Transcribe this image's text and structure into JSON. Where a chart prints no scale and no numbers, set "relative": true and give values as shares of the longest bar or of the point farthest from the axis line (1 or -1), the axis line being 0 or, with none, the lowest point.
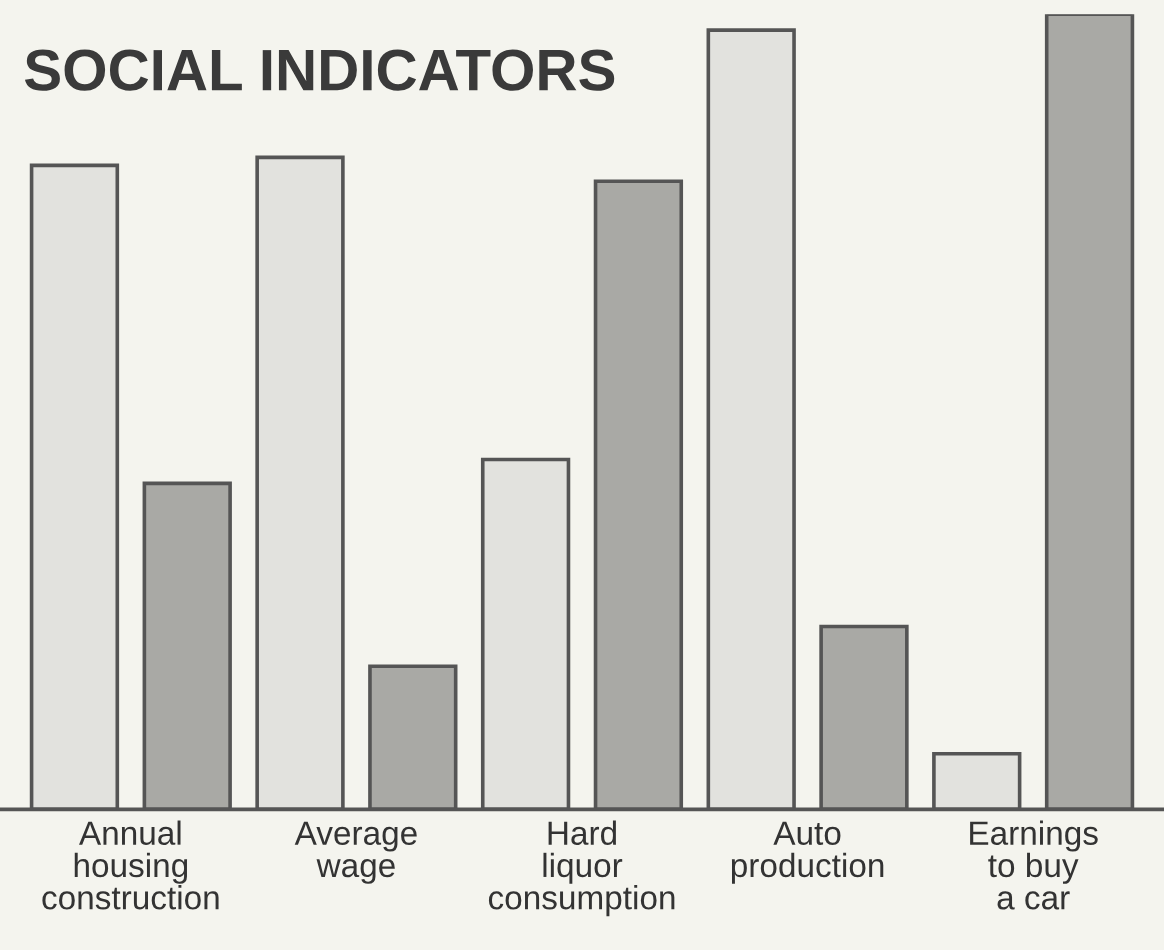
{
  "chart_data": {
    "type": "bar",
    "title": "SOCIAL INDICATORS",
    "relative": true,
    "categories": [
      "Annual\nhousing\nconstruction",
      "Average\nwage",
      "Hard\nliquor\nconsumption",
      "Auto\nproduction",
      "Earnings\nto buy\na car"
    ],
    "series": [
      {
        "color": "#e2e2de",
        "values": [
          0.81,
          0.82,
          0.44,
          0.98,
          0.07
        ]
      },
      {
        "color": "#a9a9a5",
        "values": [
          0.41,
          0.18,
          0.79,
          0.23,
          1.0
        ]
      }
    ],
    "grid": false,
    "legend": false
  }
}
